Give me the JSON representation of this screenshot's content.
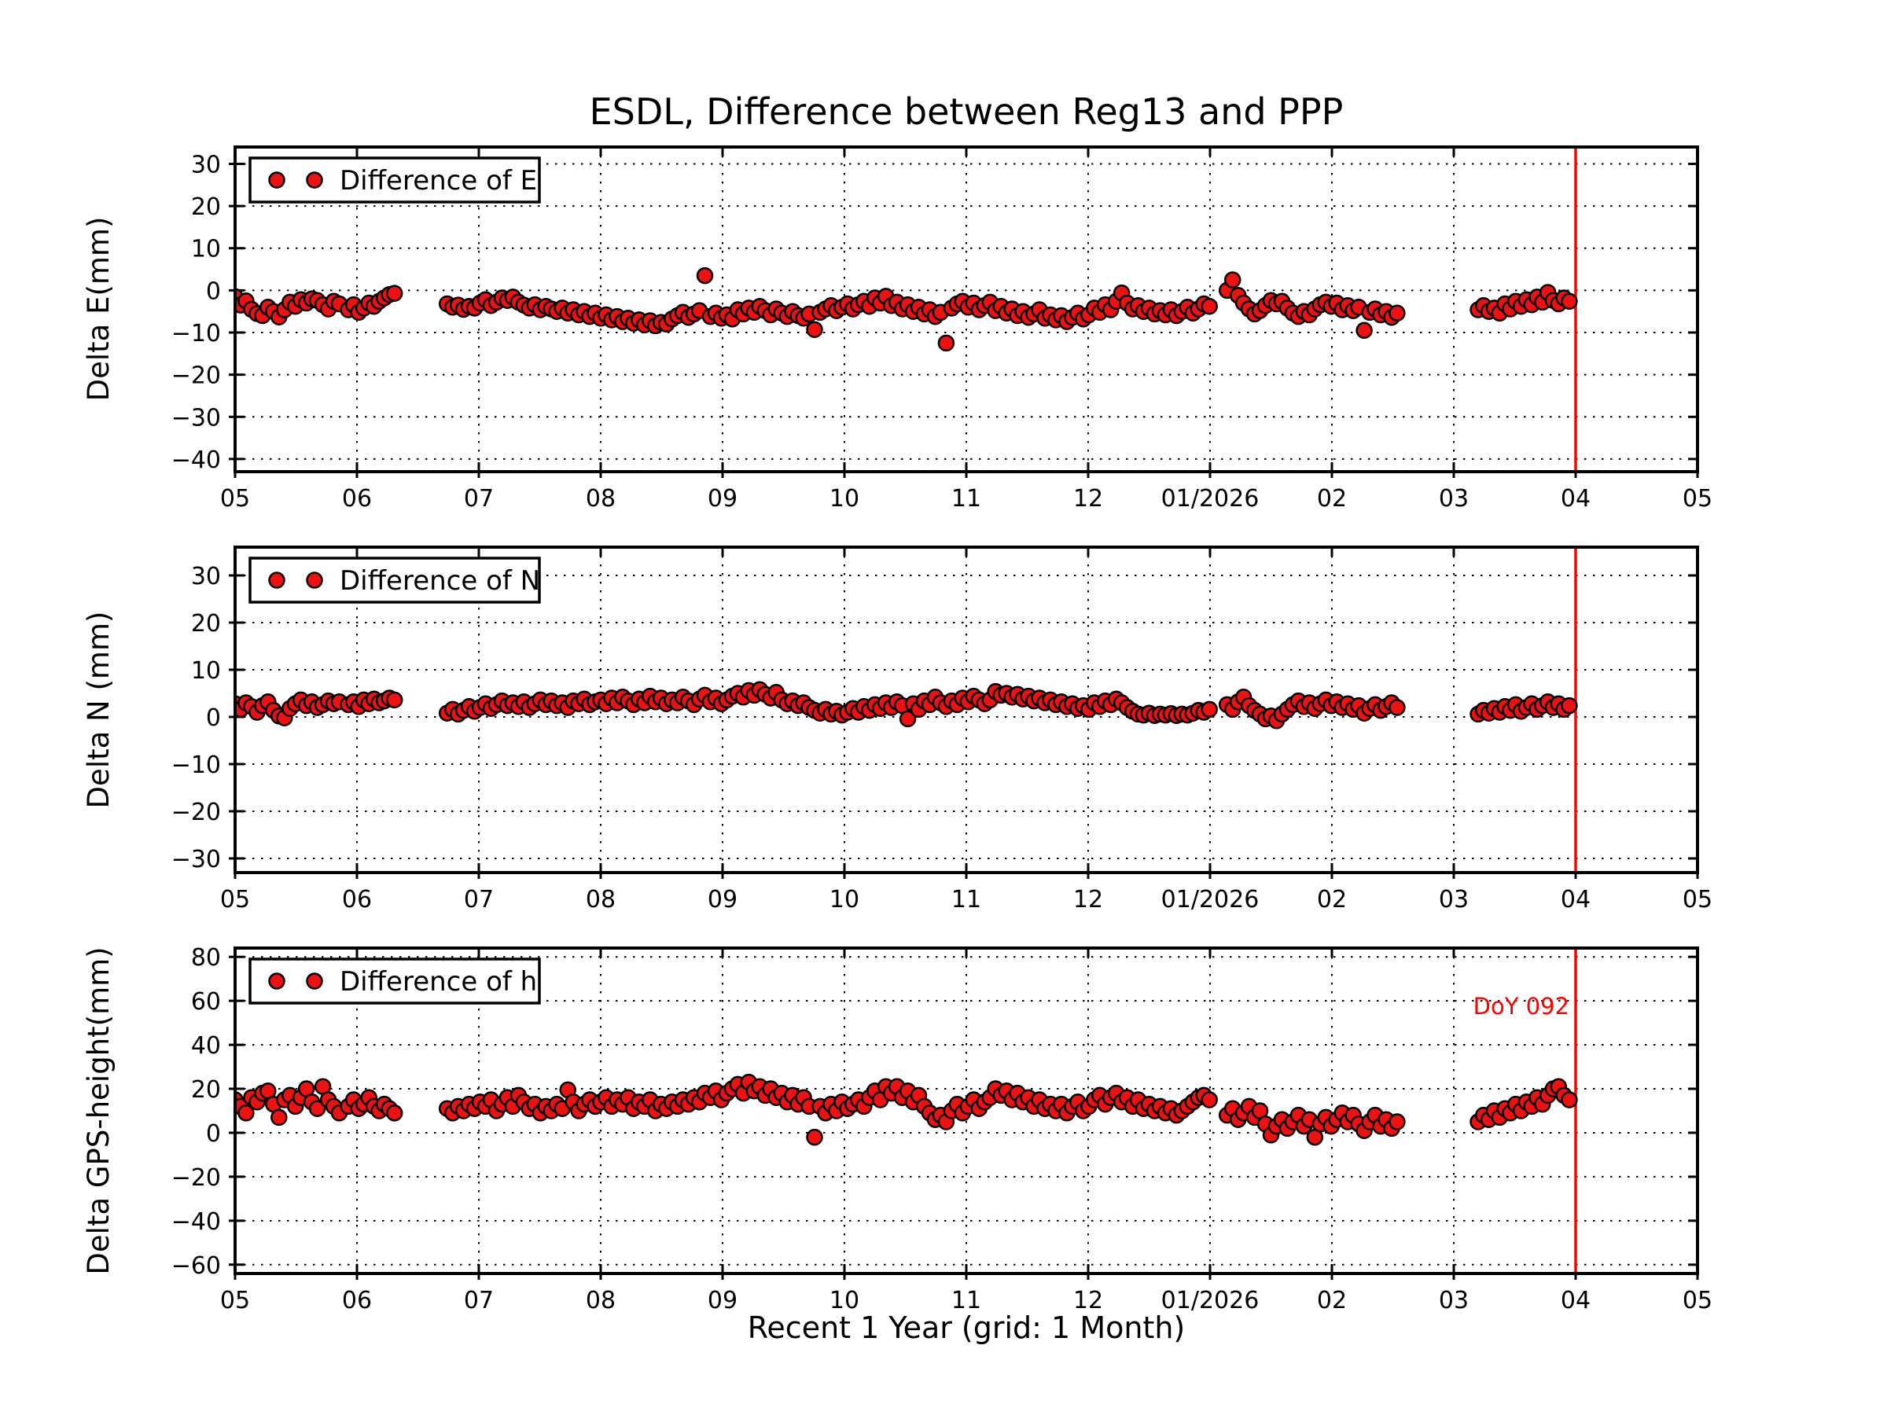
{
  "chart_data": {
    "type": "scatter",
    "title": "ESDL, Difference between Reg13 and PPP",
    "xlabel": "Recent 1 Year (grid: 1 Month)",
    "x_axis": {
      "ticks": [
        5,
        6,
        7,
        8,
        9,
        10,
        11,
        12,
        13,
        14,
        15,
        16,
        17
      ],
      "tick_labels": [
        "05",
        "06",
        "07",
        "08",
        "09",
        "10",
        "11",
        "12",
        "01/2026",
        "02",
        "03",
        "04",
        "05"
      ],
      "xlim": [
        5,
        17
      ],
      "grid": "dotted, 1 month"
    },
    "event_line": {
      "x": 16,
      "x_label": "04",
      "annotation": "DoY 092",
      "color": "#ff0000"
    },
    "style": {
      "marker_fill": "#ee1111",
      "marker_edge": "#000000",
      "grid_color": "#000000",
      "background": "#ffffff"
    },
    "segments": [
      {
        "x0": 5.0,
        "dx": 0.045
      },
      {
        "x0": 5.93,
        "dx": 0.042
      },
      {
        "x0": 6.74,
        "dx": 0.045
      },
      {
        "x0": 13.14,
        "dx": 0.045
      },
      {
        "x0": 15.2,
        "dx": 0.044
      }
    ],
    "subplots": [
      {
        "ylabel": "Delta E(mm)",
        "legend_label": "Difference of E",
        "ylim": [
          -43,
          34
        ],
        "yticks": [
          30,
          20,
          10,
          0,
          -10,
          -20,
          -30,
          -40
        ],
        "y_segments": [
          [
            -1.5,
            -3.5,
            -2.5,
            -4.5,
            -5.5,
            -6.0,
            -4.0,
            -5.0,
            -6.3,
            -4.6,
            -2.8,
            -3.8,
            -2.2,
            -3.0,
            -2.0,
            -2.4,
            -3.4,
            -4.4,
            -2.6,
            -3.2
          ],
          [
            -4.6,
            -3.4,
            -5.2,
            -4.2,
            -3.0,
            -3.8,
            -2.6,
            -1.8,
            -1.0,
            -0.7
          ],
          [
            -3.2,
            -4.0,
            -3.5,
            -4.5,
            -3.8,
            -4.2,
            -3.0,
            -2.2,
            -3.6,
            -2.8,
            -1.8,
            -2.4,
            -1.6,
            -2.8,
            -3.5,
            -4.2,
            -3.4,
            -4.6,
            -3.8,
            -4.4,
            -5.0,
            -4.2,
            -5.4,
            -4.6,
            -5.8,
            -5.0,
            -6.2,
            -5.4,
            -6.6,
            -5.8,
            -7.0,
            -6.2,
            -7.4,
            -6.6,
            -7.8,
            -7.0,
            -8.2,
            -7.2,
            -8.4,
            -7.6,
            -8.0,
            -6.8,
            -6.0,
            -5.2,
            -6.4,
            -5.6,
            -4.8,
            3.5,
            -6.2,
            -5.4,
            -6.6,
            -5.8,
            -6.8,
            -4.6,
            -5.6,
            -4.2,
            -5.2,
            -3.8,
            -4.8,
            -5.8,
            -4.4,
            -5.4,
            -6.2,
            -5.0,
            -6.0,
            -6.6,
            -5.6,
            -9.3,
            -5.2,
            -4.4,
            -3.6,
            -4.8,
            -4.0,
            -3.2,
            -4.4,
            -3.4,
            -2.6,
            -3.8,
            -1.8,
            -3.0,
            -1.4,
            -3.6,
            -2.8,
            -4.4,
            -3.4,
            -5.0,
            -4.0,
            -5.6,
            -4.6,
            -6.2,
            -5.2,
            -12.5,
            -4.2,
            -3.2,
            -2.6,
            -4.0,
            -3.0,
            -4.6,
            -3.6,
            -2.8,
            -4.8,
            -3.8,
            -5.4,
            -4.4,
            -6.0,
            -5.0,
            -6.4,
            -5.6,
            -4.6,
            -6.6,
            -5.8,
            -7.0,
            -6.0,
            -7.4,
            -6.4,
            -5.4,
            -6.8,
            -5.8,
            -4.2,
            -5.2,
            -3.4,
            -4.6,
            -2.6,
            -0.6,
            -3.0,
            -4.4,
            -3.6,
            -5.0,
            -4.2,
            -5.6,
            -4.8,
            -5.8,
            -4.6,
            -6.0,
            -5.0,
            -4.0,
            -5.4,
            -4.4,
            -3.2,
            -3.8
          ],
          [
            0.0,
            2.5,
            -1.2,
            -3.0,
            -4.4,
            -5.6,
            -4.8,
            -3.6,
            -2.4,
            -3.2,
            -2.6,
            -4.2,
            -5.4,
            -6.2,
            -5.0,
            -5.8,
            -4.4,
            -3.4,
            -2.8,
            -3.8,
            -3.0,
            -4.6,
            -3.6,
            -4.8,
            -4.0,
            -9.5,
            -5.2,
            -4.4,
            -5.8,
            -5.0,
            -6.4,
            -5.4
          ],
          [
            -4.6,
            -3.6,
            -5.0,
            -4.2,
            -5.4,
            -3.2,
            -4.4,
            -2.6,
            -3.8,
            -2.2,
            -3.4,
            -1.6,
            -2.8,
            -0.5,
            -2.4,
            -3.2,
            -1.8,
            -2.6
          ]
        ]
      },
      {
        "ylabel": "Delta N (mm)",
        "legend_label": "Difference of N",
        "ylim": [
          -33,
          36
        ],
        "yticks": [
          30,
          20,
          10,
          0,
          -10,
          -20,
          -30
        ],
        "y_segments": [
          [
            2.8,
            1.6,
            3.0,
            2.2,
            1.0,
            2.4,
            3.2,
            1.4,
            0.2,
            -0.2,
            1.8,
            2.8,
            3.6,
            2.4,
            3.2,
            2.0,
            2.6,
            3.4,
            2.8,
            3.2
          ],
          [
            2.6,
            3.2,
            2.2,
            3.6,
            2.8,
            3.8,
            3.0,
            3.4,
            4.0,
            3.6
          ],
          [
            0.8,
            1.6,
            0.6,
            1.4,
            2.2,
            1.2,
            2.0,
            2.8,
            1.8,
            2.6,
            3.4,
            2.4,
            3.0,
            2.2,
            3.2,
            2.0,
            2.8,
            3.6,
            2.6,
            3.4,
            2.4,
            3.0,
            2.0,
            3.4,
            2.8,
            3.8,
            2.6,
            3.2,
            3.6,
            2.8,
            4.0,
            3.0,
            4.2,
            3.4,
            2.6,
            3.8,
            3.0,
            4.4,
            3.2,
            4.0,
            2.8,
            3.6,
            3.0,
            4.2,
            3.4,
            2.6,
            3.8,
            4.6,
            3.2,
            4.0,
            2.8,
            3.6,
            4.4,
            5.0,
            4.2,
            5.6,
            4.6,
            5.8,
            4.8,
            4.0,
            5.2,
            3.6,
            2.8,
            3.4,
            2.4,
            3.0,
            2.0,
            1.4,
            0.8,
            1.6,
            0.6,
            1.2,
            0.4,
            1.0,
            1.8,
            1.0,
            2.2,
            1.4,
            2.6,
            1.8,
            3.0,
            2.0,
            3.2,
            2.4,
            -0.4,
            2.8,
            1.6,
            3.4,
            2.6,
            4.2,
            3.0,
            2.2,
            3.4,
            2.6,
            4.0,
            3.2,
            4.4,
            3.6,
            2.8,
            3.6,
            5.4,
            4.6,
            5.0,
            4.2,
            4.8,
            3.8,
            4.4,
            3.4,
            4.0,
            3.0,
            3.6,
            2.6,
            3.2,
            2.2,
            2.8,
            1.8,
            2.4,
            1.6,
            3.0,
            2.2,
            3.4,
            2.6,
            3.8,
            3.0,
            2.0,
            1.2,
            0.6,
            0.4,
            0.8,
            0.3,
            0.6,
            0.4,
            0.7,
            0.3,
            0.6,
            0.4,
            0.8,
            1.4,
            1.0,
            1.6
          ],
          [
            2.6,
            1.6,
            3.2,
            4.2,
            2.4,
            1.4,
            0.6,
            -0.4,
            0.2,
            -0.8,
            0.6,
            1.6,
            2.6,
            3.4,
            2.2,
            3.0,
            1.8,
            2.8,
            3.6,
            2.4,
            3.2,
            2.0,
            2.8,
            1.6,
            2.4,
            0.8,
            1.8,
            2.6,
            1.4,
            2.2,
            3.0,
            2.0
          ],
          [
            0.6,
            1.4,
            0.8,
            1.8,
            1.0,
            2.2,
            1.4,
            2.6,
            1.2,
            2.0,
            2.8,
            1.6,
            2.4,
            3.2,
            2.0,
            2.8,
            1.6,
            2.4
          ]
        ]
      },
      {
        "ylabel": "Delta GPS-height(mm)",
        "legend_label": "Difference of h",
        "ylim": [
          -64,
          84
        ],
        "yticks": [
          80,
          60,
          40,
          20,
          0,
          -20,
          -40,
          -60
        ],
        "y_segments": [
          [
            15,
            12,
            9,
            16,
            14,
            18,
            19,
            13,
            7,
            15,
            17,
            12,
            16,
            20,
            14,
            11,
            21,
            15,
            12,
            9
          ],
          [
            12,
            15,
            11,
            13,
            16,
            12,
            10,
            13,
            11,
            9
          ],
          [
            11,
            9,
            12,
            10,
            13,
            11,
            14,
            12,
            15,
            10,
            13,
            16,
            12,
            17,
            14,
            11,
            13,
            9,
            12,
            10,
            13,
            11,
            19.5,
            14,
            10,
            13,
            15,
            12,
            14,
            16,
            12,
            15,
            13,
            16,
            11,
            14,
            12,
            15,
            10,
            13,
            11,
            14,
            12,
            15,
            13,
            16,
            14,
            18,
            16,
            19,
            15,
            18,
            20,
            22,
            18,
            23,
            19,
            21,
            17,
            20,
            16,
            18,
            14,
            17,
            13,
            16,
            12,
            -2,
            12,
            9,
            13,
            10,
            14,
            11,
            13,
            15,
            12,
            16,
            19,
            15,
            21,
            18,
            21,
            16,
            19,
            14,
            17,
            12,
            9,
            6,
            8,
            5,
            10,
            13,
            9,
            12,
            15,
            11,
            14,
            16,
            20,
            17,
            19,
            15,
            18,
            14,
            16,
            12,
            15,
            11,
            13,
            10,
            13,
            9,
            12,
            14,
            10,
            12,
            15,
            17,
            13,
            16,
            18,
            14,
            16,
            12,
            15,
            11,
            13,
            10,
            12,
            9,
            11,
            8,
            10,
            12,
            14,
            16,
            17,
            15
          ],
          [
            8,
            11,
            6,
            9,
            12,
            7,
            10,
            4,
            -1,
            3,
            6,
            2,
            5,
            8,
            3,
            6,
            -2,
            4,
            7,
            3,
            6,
            9,
            5,
            8,
            4,
            1,
            5,
            8,
            3,
            6,
            2,
            5
          ],
          [
            5,
            8,
            6,
            10,
            7,
            11,
            9,
            13,
            10,
            14,
            12,
            16,
            13,
            17,
            20,
            21,
            17,
            15
          ]
        ]
      }
    ]
  }
}
